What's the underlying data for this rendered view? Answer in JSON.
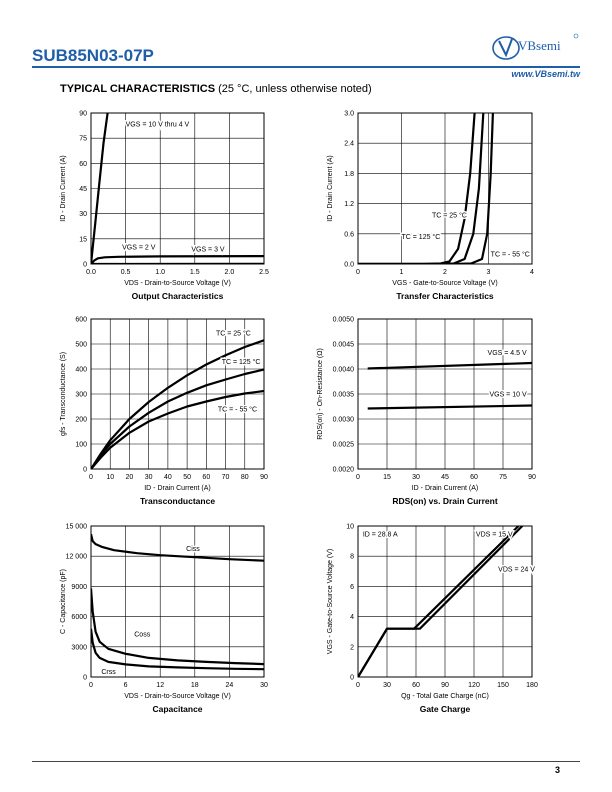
{
  "header": {
    "part_number": "SUB85N03-07P",
    "brand": "VBsemi",
    "website": "www.VBsemi.tw",
    "section_title": "TYPICAL CHARACTERISTICS",
    "section_note": "(25 °C, unless otherwise noted)",
    "brand_color": "#1f5ea8"
  },
  "footer": {
    "page_number": "3"
  },
  "chart_data": [
    {
      "type": "line",
      "title": "Output Characteristics",
      "xlabel": "VDS - Drain-to-Source Voltage (V)",
      "ylabel": "ID - Drain Current (A)",
      "xlim": [
        0,
        2.5
      ],
      "ylim": [
        0,
        90
      ],
      "xticks": [
        0,
        0.5,
        1.0,
        1.5,
        2.0,
        2.5
      ],
      "xtick_labels": [
        "0.0",
        "0.5",
        "1.0",
        "1.5",
        "2.0",
        "2.5"
      ],
      "yticks": [
        0,
        15,
        30,
        45,
        60,
        75,
        90
      ],
      "ytick_labels": [
        "0",
        "15",
        "30",
        "45",
        "60",
        "75",
        "90"
      ],
      "grid": true,
      "series": [
        {
          "name": "VGS = 10 V thru 4 V",
          "points": [
            [
              0,
              0
            ],
            [
              0.06,
              24
            ],
            [
              0.12,
              48
            ],
            [
              0.18,
              72
            ],
            [
              0.24,
              90
            ]
          ]
        },
        {
          "name": "VGS = 3 V",
          "points": [
            [
              0,
              0
            ],
            [
              0.05,
              2.2
            ],
            [
              0.1,
              3.4
            ],
            [
              0.2,
              4
            ],
            [
              0.4,
              4.3
            ],
            [
              1.0,
              4.5
            ],
            [
              2.5,
              4.7
            ]
          ]
        },
        {
          "name": "VGS = 2 V",
          "points": [
            [
              0,
              0
            ],
            [
              2.5,
              0.1
            ]
          ]
        }
      ],
      "annotations": [
        {
          "text": "VGS = 10 V thru 4 V",
          "x": 0.5,
          "y": 82
        },
        {
          "text": "VGS = 2 V",
          "x": 0.45,
          "y": 8.5
        },
        {
          "text": "VGS = 3 V",
          "x": 1.45,
          "y": 7.5
        }
      ]
    },
    {
      "type": "line",
      "title": "Transfer Characteristics",
      "xlabel": "VGS - Gate-to-Source Voltage (V)",
      "ylabel": "ID - Drain Current (A)",
      "xlim": [
        0,
        4
      ],
      "ylim": [
        0,
        3.0
      ],
      "xticks": [
        0,
        1,
        2,
        3,
        4
      ],
      "xtick_labels": [
        "0",
        "1",
        "2",
        "3",
        "4"
      ],
      "yticks": [
        0,
        0.6,
        1.2,
        1.8,
        2.4,
        3.0
      ],
      "ytick_labels": [
        "0.0",
        "0.6",
        "1.2",
        "1.8",
        "2.4",
        "3.0"
      ],
      "grid": true,
      "series": [
        {
          "name": "TC = 125 °C",
          "points": [
            [
              0,
              0
            ],
            [
              1.5,
              0
            ],
            [
              1.9,
              0.01
            ],
            [
              2.1,
              0.05
            ],
            [
              2.3,
              0.3
            ],
            [
              2.45,
              0.9
            ],
            [
              2.58,
              1.8
            ],
            [
              2.68,
              3.0
            ]
          ]
        },
        {
          "name": "TC = 25 °C",
          "points": [
            [
              0,
              0
            ],
            [
              1.8,
              0
            ],
            [
              2.2,
              0.01
            ],
            [
              2.45,
              0.1
            ],
            [
              2.65,
              0.6
            ],
            [
              2.78,
              1.5
            ],
            [
              2.88,
              3.0
            ]
          ]
        },
        {
          "name": "TC = - 55 °C",
          "points": [
            [
              0,
              0
            ],
            [
              2.2,
              0
            ],
            [
              2.6,
              0.01
            ],
            [
              2.85,
              0.1
            ],
            [
              2.97,
              0.6
            ],
            [
              3.05,
              1.8
            ],
            [
              3.1,
              3.0
            ]
          ]
        }
      ],
      "annotations": [
        {
          "text": "TC = 25 °C",
          "x": 1.7,
          "y": 0.92
        },
        {
          "text": "TC = 125 °C",
          "x": 1.0,
          "y": 0.5
        },
        {
          "text": "TC = - 55 °C",
          "x": 3.05,
          "y": 0.15
        }
      ]
    },
    {
      "type": "line",
      "title": "Transconductance",
      "xlabel": "ID - Drain Current (A)",
      "ylabel": "gfs - Transconductance (S)",
      "xlim": [
        0,
        90
      ],
      "ylim": [
        0,
        600
      ],
      "xticks": [
        0,
        10,
        20,
        30,
        40,
        50,
        60,
        70,
        80,
        90
      ],
      "xtick_labels": [
        "0",
        "10",
        "20",
        "30",
        "40",
        "50",
        "60",
        "70",
        "80",
        "90"
      ],
      "yticks": [
        0,
        100,
        200,
        300,
        400,
        500,
        600
      ],
      "ytick_labels": [
        "0",
        "100",
        "200",
        "300",
        "400",
        "500",
        "600"
      ],
      "grid": true,
      "series": [
        {
          "name": "TC = 25 °C",
          "points": [
            [
              0,
              0
            ],
            [
              5,
              60
            ],
            [
              10,
              115
            ],
            [
              20,
              200
            ],
            [
              30,
              268
            ],
            [
              40,
              325
            ],
            [
              50,
              375
            ],
            [
              60,
              418
            ],
            [
              70,
              455
            ],
            [
              80,
              488
            ],
            [
              90,
              515
            ]
          ]
        },
        {
          "name": "TC = 125 °C",
          "points": [
            [
              0,
              0
            ],
            [
              5,
              55
            ],
            [
              10,
              100
            ],
            [
              20,
              170
            ],
            [
              30,
              225
            ],
            [
              40,
              270
            ],
            [
              50,
              305
            ],
            [
              60,
              335
            ],
            [
              70,
              358
            ],
            [
              80,
              380
            ],
            [
              90,
              398
            ]
          ]
        },
        {
          "name": "TC = - 55 °C",
          "points": [
            [
              0,
              0
            ],
            [
              5,
              45
            ],
            [
              10,
              85
            ],
            [
              20,
              145
            ],
            [
              30,
              190
            ],
            [
              40,
              222
            ],
            [
              50,
              250
            ],
            [
              60,
              270
            ],
            [
              70,
              288
            ],
            [
              80,
              302
            ],
            [
              90,
              312
            ]
          ]
        }
      ],
      "annotations": [
        {
          "text": "TC = 25 °C",
          "x": 65,
          "y": 535
        },
        {
          "text": "TC = 125 °C",
          "x": 68,
          "y": 420
        },
        {
          "text": "TC = - 55 °C",
          "x": 66,
          "y": 230
        }
      ]
    },
    {
      "type": "line",
      "title": "RDS(on) vs. Drain Current",
      "xlabel": "ID - Drain Current (A)",
      "ylabel": "RDS(on) - On-Resistance (Ω)",
      "xlim": [
        0,
        90
      ],
      "ylim": [
        0.002,
        0.005
      ],
      "xticks": [
        0,
        15,
        30,
        45,
        60,
        75,
        90
      ],
      "xtick_labels": [
        "0",
        "15",
        "30",
        "45",
        "60",
        "75",
        "90"
      ],
      "yticks": [
        0.002,
        0.0025,
        0.003,
        0.0035,
        0.004,
        0.0045,
        0.005
      ],
      "ytick_labels": [
        "0.0020",
        "0.0025",
        "0.0030",
        "0.0035",
        "0.0040",
        "0.0045",
        "0.0050"
      ],
      "grid": true,
      "series": [
        {
          "name": "VGS = 4.5 V",
          "points": [
            [
              5,
              0.00401
            ],
            [
              90,
              0.00412
            ]
          ]
        },
        {
          "name": "VGS = 10 V",
          "points": [
            [
              5,
              0.00321
            ],
            [
              90,
              0.00327
            ]
          ]
        }
      ],
      "annotations": [
        {
          "text": "VGS = 4.5 V",
          "x": 67,
          "y": 0.00428
        },
        {
          "text": "VGS = 10 V",
          "x": 68,
          "y": 0.00345
        }
      ]
    },
    {
      "type": "line",
      "title": "Capacitance",
      "xlabel": "VDS - Drain-to-Source Voltage (V)",
      "ylabel": "C - Capacitance (pF)",
      "xlim": [
        0,
        30
      ],
      "ylim": [
        0,
        15000
      ],
      "xticks": [
        0,
        6,
        12,
        18,
        24,
        30
      ],
      "xtick_labels": [
        "0",
        "6",
        "12",
        "18",
        "24",
        "30"
      ],
      "yticks": [
        0,
        3000,
        6000,
        9000,
        12000,
        15000
      ],
      "ytick_labels": [
        "0",
        "3000",
        "6000",
        "9000",
        "12 000",
        "15 000"
      ],
      "grid": true,
      "series": [
        {
          "name": "Ciss",
          "points": [
            [
              0,
              14200
            ],
            [
              0.3,
              13500
            ],
            [
              0.8,
              13200
            ],
            [
              2,
              12900
            ],
            [
              4,
              12600
            ],
            [
              8,
              12300
            ],
            [
              12,
              12100
            ],
            [
              18,
              11900
            ],
            [
              24,
              11700
            ],
            [
              30,
              11550
            ]
          ]
        },
        {
          "name": "Coss",
          "points": [
            [
              0,
              8800
            ],
            [
              0.3,
              6500
            ],
            [
              0.8,
              4500
            ],
            [
              1.5,
              3500
            ],
            [
              3,
              2800
            ],
            [
              6,
              2300
            ],
            [
              10,
              1900
            ],
            [
              15,
              1650
            ],
            [
              20,
              1500
            ],
            [
              25,
              1380
            ],
            [
              30,
              1280
            ]
          ]
        },
        {
          "name": "Crss",
          "points": [
            [
              0,
              4800
            ],
            [
              0.3,
              3400
            ],
            [
              0.8,
              2400
            ],
            [
              1.5,
              1900
            ],
            [
              3,
              1500
            ],
            [
              6,
              1250
            ],
            [
              10,
              1050
            ],
            [
              15,
              950
            ],
            [
              20,
              870
            ],
            [
              25,
              810
            ],
            [
              30,
              770
            ]
          ]
        }
      ],
      "annotations": [
        {
          "text": "Ciss",
          "x": 16.5,
          "y": 12500
        },
        {
          "text": "Coss",
          "x": 7.5,
          "y": 4000
        },
        {
          "text": "Crss",
          "x": 1.8,
          "y": 300
        }
      ]
    },
    {
      "type": "line",
      "title": "Gate Charge",
      "xlabel": "Qg - Total Gate Charge (nC)",
      "ylabel": "VGS - Gate-to-Source Voltage (V)",
      "xlim": [
        0,
        180
      ],
      "ylim": [
        0,
        10
      ],
      "xticks": [
        0,
        30,
        60,
        90,
        120,
        150,
        180
      ],
      "xtick_labels": [
        "0",
        "30",
        "60",
        "90",
        "120",
        "150",
        "180"
      ],
      "yticks": [
        0,
        2,
        4,
        6,
        8,
        10
      ],
      "ytick_labels": [
        "0",
        "2",
        "4",
        "6",
        "8",
        "10"
      ],
      "grid": true,
      "series": [
        {
          "name": "VDS = 15 V",
          "points": [
            [
              0,
              0
            ],
            [
              30,
              3.2
            ],
            [
              58,
              3.2
            ],
            [
              166,
              10
            ]
          ]
        },
        {
          "name": "VDS = 24 V",
          "points": [
            [
              0,
              0
            ],
            [
              30,
              3.2
            ],
            [
              64,
              3.2
            ],
            [
              170,
              10
            ]
          ]
        }
      ],
      "annotations": [
        {
          "text": "ID = 28.8 A",
          "x": 5,
          "y": 9.3
        },
        {
          "text": "VDS = 15 V",
          "x": 122,
          "y": 9.3
        },
        {
          "text": "VDS = 24 V",
          "x": 145,
          "y": 7.0
        }
      ]
    }
  ]
}
